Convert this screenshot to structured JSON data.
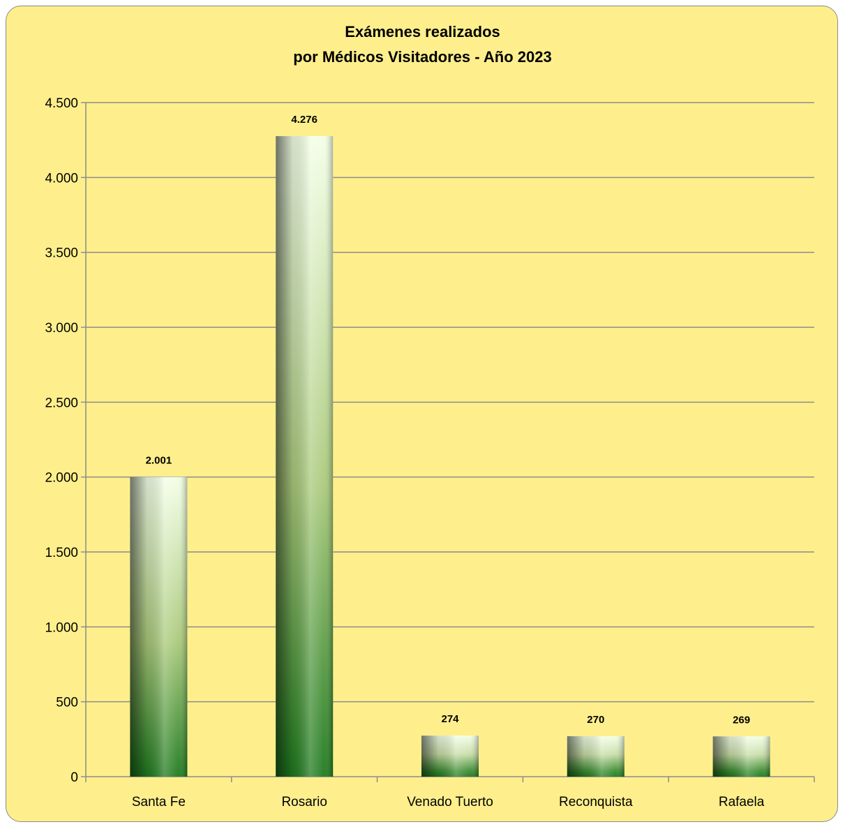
{
  "chart_data": {
    "type": "bar",
    "title_line1": "Exámenes realizados",
    "title_line2": "por Médicos Visitadores - Año 2023",
    "categories": [
      "Santa Fe",
      "Rosario",
      "Venado Tuerto",
      "Reconquista",
      "Rafaela"
    ],
    "values": [
      2001,
      4276,
      274,
      270,
      269
    ],
    "data_labels": [
      "2.001",
      "4.276",
      "274",
      "270",
      "269"
    ],
    "ylim": [
      0,
      4500
    ],
    "yticks": [
      0,
      500,
      1000,
      1500,
      2000,
      2500,
      3000,
      3500,
      4000,
      4500
    ],
    "ytick_labels": [
      "0",
      "500",
      "1.000",
      "1.500",
      "2.000",
      "2.500",
      "3.000",
      "3.500",
      "4.000",
      "4.500"
    ],
    "grid": true,
    "background_color": "#FFEF8C",
    "bar_colors": {
      "top": "#F2FFE6",
      "middle": "#A9C97A",
      "bottom": "#1F7A1F"
    }
  }
}
